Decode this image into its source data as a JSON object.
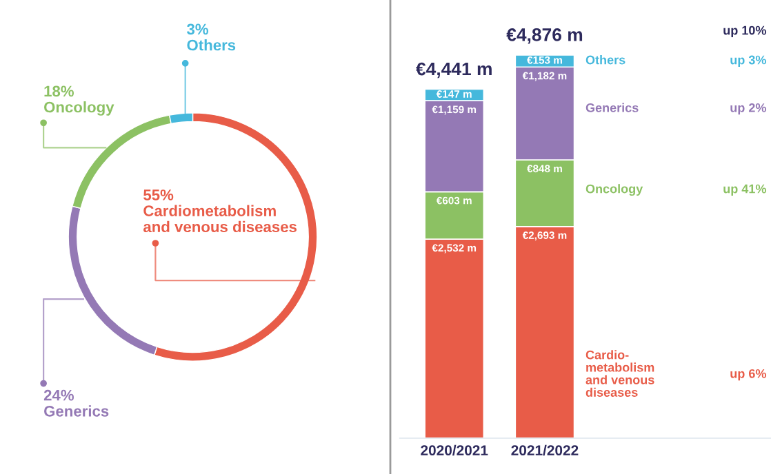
{
  "chart_data": [
    {
      "type": "donut",
      "categories": [
        "Cardiometabolism\nand venous diseases",
        "Generics",
        "Oncology",
        "Others"
      ],
      "values": [
        55,
        24,
        18,
        3
      ],
      "value_labels": [
        "55%",
        "24%",
        "18%",
        "3%"
      ],
      "colors": [
        "#e85c48",
        "#9479b5",
        "#8cc163",
        "#45b8dc"
      ]
    },
    {
      "type": "bar",
      "stacked": true,
      "categories": [
        "2020/2021",
        "2021/2022"
      ],
      "series": [
        {
          "name": "Cardio-\nmetabolism\nand venous\ndiseases",
          "color": "#e85c48",
          "values": [
            2532,
            2693
          ],
          "value_labels": [
            "€2,532 m",
            "€2,693 m"
          ]
        },
        {
          "name": "Oncology",
          "color": "#8cc163",
          "values": [
            603,
            848
          ],
          "value_labels": [
            "€603 m",
            "€848 m"
          ]
        },
        {
          "name": "Generics",
          "color": "#9479b5",
          "values": [
            1159,
            1182
          ],
          "value_labels": [
            "€1,159 m",
            "€1,182 m"
          ]
        },
        {
          "name": "Others",
          "color": "#45b8dc",
          "values": [
            147,
            153
          ],
          "value_labels": [
            "€147 m",
            "€153 m"
          ]
        }
      ],
      "totals": [
        "€4,441 m",
        "€4,876 m"
      ],
      "annotations": [
        "up 10%",
        "up 3%",
        "up 2%",
        "up 41%",
        "up 6%"
      ]
    }
  ]
}
